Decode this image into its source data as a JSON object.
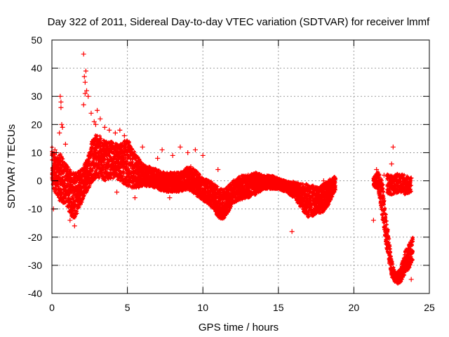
{
  "chart_data": {
    "type": "scatter",
    "title": "Day 322 of 2011, Sidereal Day-to-day VTEC variation (SDTVAR) for receiver lmmf",
    "xlabel": "GPS time / hours",
    "ylabel": "SDTVAR / TECUs",
    "xlim": [
      0,
      25
    ],
    "ylim": [
      -40,
      50
    ],
    "x_ticks": [
      0,
      5,
      10,
      15,
      20,
      25
    ],
    "y_ticks": [
      -40,
      -30,
      -20,
      -10,
      0,
      10,
      20,
      30,
      40,
      50
    ],
    "x_tick_labels": [
      "0",
      "5",
      "10",
      "15",
      "20",
      "25"
    ],
    "y_tick_labels": [
      "-40",
      "-30",
      "-20",
      "-10",
      "0",
      "10",
      "20",
      "30",
      "40",
      "50"
    ],
    "grid": true,
    "marker": "+",
    "series": [
      {
        "name": "SDTVAR",
        "color": "#ff0000",
        "band_x": [
          0.0,
          0.3,
          0.6,
          0.9,
          1.2,
          1.5,
          1.8,
          2.1,
          2.4,
          2.7,
          3.0,
          3.5,
          4.0,
          4.5,
          5.0,
          5.5,
          6.0,
          6.5,
          7.0,
          7.5,
          8.0,
          8.5,
          9.0,
          9.5,
          10.0,
          10.5,
          11.0,
          11.3,
          11.6,
          12.0,
          12.5,
          13.0,
          13.5,
          14.0,
          14.5,
          15.0,
          15.5,
          16.0,
          16.5,
          17.0,
          17.5,
          18.0,
          18.5,
          18.8
        ],
        "band_upper": [
          12,
          8,
          10,
          6,
          5,
          3,
          4,
          5,
          10,
          15,
          17,
          14,
          14,
          13,
          15,
          10,
          6,
          5,
          4,
          3,
          3,
          3,
          5,
          4,
          1,
          0,
          -2,
          -3,
          -2,
          0,
          2,
          2,
          3,
          2,
          2,
          1,
          0,
          0,
          -1,
          -1,
          -2,
          -1,
          1,
          2
        ],
        "band_lower": [
          -2,
          -5,
          -8,
          -8,
          -12,
          -14,
          -10,
          -6,
          -3,
          0,
          1,
          0,
          1,
          0,
          -2,
          -3,
          -2,
          -2,
          -3,
          -4,
          -4,
          -4,
          -3,
          -5,
          -7,
          -9,
          -13,
          -14,
          -12,
          -8,
          -7,
          -6,
          -5,
          -3,
          -3,
          -3,
          -4,
          -6,
          -10,
          -13,
          -12,
          -11,
          -7,
          -3
        ],
        "band2_x": [
          21.3,
          21.6,
          21.9,
          22.2,
          22.5,
          22.8,
          23.1,
          23.4,
          23.7,
          23.9
        ],
        "band2_upper": [
          1,
          4,
          0,
          -15,
          -28,
          -33,
          -31,
          -25,
          -22,
          -20
        ],
        "band2_lower": [
          -2,
          -3,
          -14,
          -26,
          -34,
          -37,
          -36,
          -33,
          -31,
          -29
        ],
        "band3_x": [
          22.2,
          22.6,
          23.0,
          23.4,
          23.8
        ],
        "band3_upper": [
          3,
          2,
          3,
          2,
          1
        ],
        "band3_lower": [
          -5,
          -5,
          -4,
          -5,
          -4
        ],
        "outlier_x": [
          0.1,
          0.5,
          0.6,
          0.55,
          0.65,
          0.6,
          0.7,
          0.9,
          2.1,
          2.15,
          2.2,
          2.25,
          2.3,
          2.1,
          2.2,
          2.4,
          2.6,
          2.8,
          2.9,
          3.0,
          3.2,
          3.5,
          3.8,
          4.2,
          4.5,
          4.8,
          5.0,
          6.0,
          7.0,
          7.3,
          8.0,
          8.5,
          9.0,
          9.5,
          10.0,
          11.0,
          13.0,
          14.0,
          15.9,
          21.3,
          22.0,
          22.5,
          22.6,
          23.6,
          23.5,
          23.8,
          0.2,
          0.3,
          1.2,
          1.5,
          4.3,
          5.5,
          6.5,
          7.8,
          9.2,
          12.3,
          16.5,
          17.2,
          18.0,
          21.5,
          21.8,
          23.2,
          23.8
        ],
        "outlier_y": [
          -10,
          17,
          26,
          30,
          20,
          28,
          19,
          13,
          45,
          37,
          35,
          39,
          32,
          27,
          31,
          30,
          24,
          21,
          20,
          25,
          22,
          19,
          18,
          17,
          18,
          16,
          14,
          12,
          8,
          11,
          9,
          12,
          10,
          11,
          9,
          4,
          2,
          1,
          -18,
          -14,
          2,
          6,
          12,
          -24,
          -27,
          -35,
          11,
          10,
          -14,
          -16,
          -4,
          -6,
          3,
          -6,
          5,
          -6,
          -8,
          -12,
          0,
          4,
          -4,
          2,
          1
        ]
      }
    ]
  }
}
